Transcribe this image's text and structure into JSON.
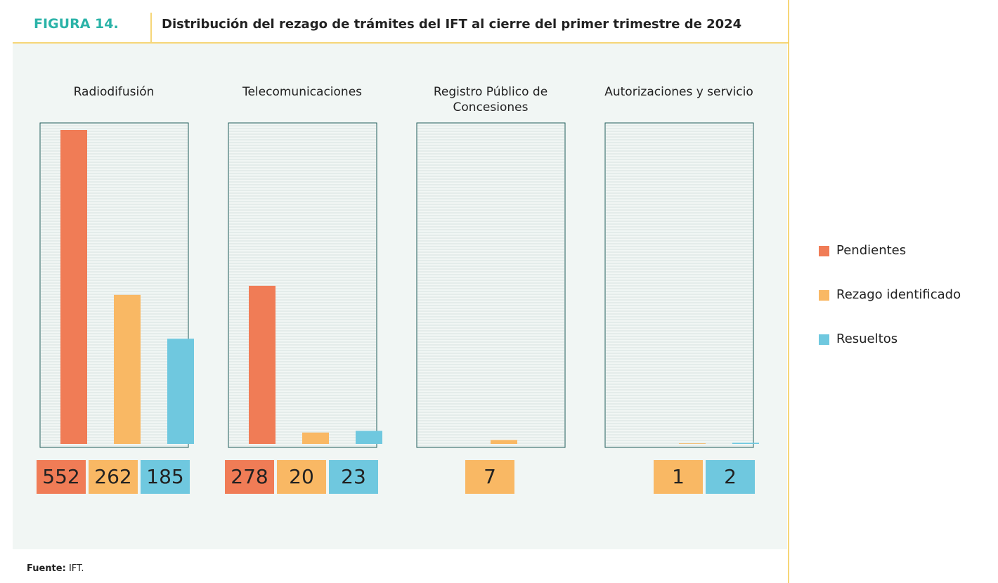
{
  "chart_data": {
    "type": "bar",
    "figure_label": "FIGURA 14.",
    "title": "Distribución del rezago de trámites del IFT al cierre del primer trimestre de 2024",
    "categories": [
      "Radiodifusión",
      "Telecomunicaciones",
      "Registro Público de Concesiones",
      "Autorizaciones y servicio"
    ],
    "series": [
      {
        "name": "Pendientes",
        "color": "#f07c56",
        "values": [
          552,
          278,
          null,
          null
        ]
      },
      {
        "name": "Rezago identificado",
        "color": "#f9b864",
        "values": [
          262,
          20,
          7,
          1
        ]
      },
      {
        "name": "Resueltos",
        "color": "#6fc8df",
        "values": [
          185,
          23,
          null,
          2
        ]
      }
    ],
    "source_label": "Fuente:",
    "source": "IFT."
  }
}
